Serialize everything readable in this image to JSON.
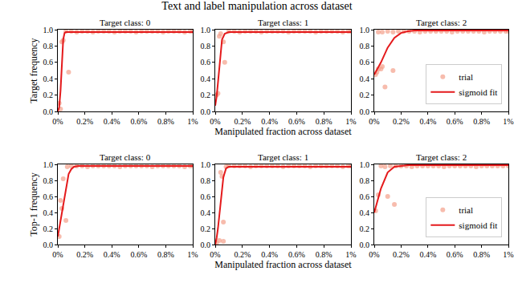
{
  "title": "Text and label manipulation across dataset",
  "chart_data": [
    {
      "type": "scatter",
      "title": "Target class: 0",
      "y_label": "Target frequency",
      "grid": false,
      "xlim": [
        0,
        1
      ],
      "xticks": [
        {
          "value": 0,
          "label": "0%"
        },
        {
          "value": 0.2,
          "label": "0.2%"
        },
        {
          "value": 0.4,
          "label": "0.4%"
        },
        {
          "value": 0.6,
          "label": "0.6%"
        },
        {
          "value": 0.8,
          "label": "0.8%"
        },
        {
          "value": 1,
          "label": "1%"
        }
      ],
      "ylim": [
        0,
        1
      ],
      "yticks": [
        {
          "value": 0,
          "label": "0.0"
        },
        0.2,
        0.4,
        0.6,
        0.8,
        {
          "value": 1,
          "label": "1.0"
        }
      ],
      "series": [
        {
          "name": "trial",
          "type": "scatter",
          "marker": "circle",
          "color": "#f4a08a",
          "x": [
            0.01,
            0.02,
            0.03,
            0.04,
            0.08,
            0.06,
            0.1,
            0.14,
            0.18,
            0.22,
            0.26,
            0.3,
            0.34,
            0.38,
            0.42,
            0.46,
            0.5,
            0.54,
            0.58,
            0.62,
            0.66,
            0.7,
            0.74,
            0.78,
            0.82,
            0.86,
            0.9,
            0.94,
            0.98,
            1.0
          ],
          "values": [
            0.1,
            0.03,
            0.85,
            0.87,
            0.48,
            0.98,
            0.98,
            0.97,
            0.98,
            0.98,
            0.97,
            0.98,
            0.98,
            0.98,
            0.97,
            0.98,
            0.98,
            0.98,
            0.97,
            0.98,
            0.98,
            0.98,
            0.98,
            0.97,
            0.98,
            0.98,
            0.98,
            0.97,
            0.98,
            0.98
          ]
        },
        {
          "name": "sigmoid fit",
          "type": "line",
          "line_style": "solid",
          "color": "#e41a1c",
          "x": [
            0,
            0.01,
            0.02,
            0.03,
            0.04,
            0.05,
            0.06,
            0.1,
            0.2,
            0.5,
            1.0
          ],
          "values": [
            0,
            0.05,
            0.25,
            0.6,
            0.88,
            0.96,
            0.97,
            0.97,
            0.97,
            0.97,
            0.97
          ]
        }
      ]
    },
    {
      "type": "scatter",
      "title": "Target class: 1",
      "x_label": "Manipulated fraction across dataset",
      "grid": false,
      "xlim": [
        0,
        1
      ],
      "xticks": [
        {
          "value": 0,
          "label": "0%"
        },
        {
          "value": 0.2,
          "label": "0.2%"
        },
        {
          "value": 0.4,
          "label": "0.4%"
        },
        {
          "value": 0.6,
          "label": "0.6%"
        },
        {
          "value": 0.8,
          "label": "0.8%"
        },
        {
          "value": 1,
          "label": "1%"
        }
      ],
      "ylim": [
        0,
        1
      ],
      "yticks": [
        {
          "value": 0,
          "label": "0.0"
        },
        0.2,
        0.4,
        0.6,
        0.8,
        {
          "value": 1,
          "label": "1.0"
        }
      ],
      "series": [
        {
          "name": "trial",
          "type": "scatter",
          "marker": "circle",
          "color": "#f4a08a",
          "x": [
            0.01,
            0.02,
            0.03,
            0.04,
            0.06,
            0.07,
            0.1,
            0.14,
            0.18,
            0.22,
            0.26,
            0.3,
            0.34,
            0.38,
            0.42,
            0.46,
            0.5,
            0.54,
            0.58,
            0.62,
            0.66,
            0.7,
            0.74,
            0.78,
            0.82,
            0.86,
            0.9,
            0.94,
            0.98,
            1.0
          ],
          "values": [
            0.2,
            0.22,
            0.92,
            0.95,
            0.85,
            0.6,
            0.98,
            0.98,
            0.97,
            0.98,
            0.98,
            0.98,
            0.97,
            0.98,
            0.98,
            0.98,
            0.98,
            0.97,
            0.98,
            0.98,
            0.98,
            0.98,
            0.97,
            0.98,
            0.98,
            0.98,
            0.98,
            0.97,
            0.98,
            0.98
          ]
        },
        {
          "name": "sigmoid fit",
          "type": "line",
          "line_style": "solid",
          "color": "#e41a1c",
          "x": [
            0,
            0.01,
            0.02,
            0.03,
            0.04,
            0.05,
            0.07,
            0.1,
            0.2,
            0.5,
            1.0
          ],
          "values": [
            0.07,
            0.18,
            0.35,
            0.55,
            0.75,
            0.88,
            0.95,
            0.97,
            0.97,
            0.97,
            0.97
          ]
        }
      ]
    },
    {
      "type": "scatter",
      "title": "Target class: 2",
      "legend": "lower right",
      "grid": false,
      "xlim": [
        0,
        1
      ],
      "xticks": [
        {
          "value": 0,
          "label": "0%"
        },
        {
          "value": 0.2,
          "label": "0.2%"
        },
        {
          "value": 0.4,
          "label": "0.4%"
        },
        {
          "value": 0.6,
          "label": "0.6%"
        },
        {
          "value": 0.8,
          "label": "0.8%"
        },
        {
          "value": 1,
          "label": "1%"
        }
      ],
      "ylim": [
        0,
        1
      ],
      "yticks": [
        {
          "value": 0,
          "label": "0.0"
        },
        0.2,
        0.4,
        0.6,
        0.8,
        {
          "value": 1,
          "label": "1.0"
        }
      ],
      "series": [
        {
          "name": "trial",
          "type": "scatter",
          "marker": "circle",
          "color": "#f4a08a",
          "x": [
            0.01,
            0.02,
            0.03,
            0.05,
            0.06,
            0.08,
            0.14,
            0.03,
            0.06,
            0.1,
            0.14,
            0.18,
            0.22,
            0.26,
            0.3,
            0.34,
            0.38,
            0.42,
            0.46,
            0.5,
            0.54,
            0.58,
            0.62,
            0.66,
            0.7,
            0.74,
            0.78,
            0.82,
            0.86,
            0.9,
            0.94,
            0.98,
            1.0
          ],
          "values": [
            0.45,
            0.48,
            0.52,
            0.52,
            0.55,
            0.3,
            0.5,
            0.97,
            0.97,
            0.98,
            0.97,
            0.98,
            0.98,
            0.98,
            0.98,
            0.97,
            0.98,
            0.98,
            0.98,
            0.98,
            0.98,
            0.97,
            0.98,
            0.98,
            0.98,
            0.98,
            0.98,
            0.97,
            0.98,
            0.98,
            0.98,
            0.98,
            0.98
          ]
        },
        {
          "name": "sigmoid fit",
          "type": "line",
          "line_style": "solid",
          "color": "#e41a1c",
          "x": [
            0,
            0.05,
            0.1,
            0.15,
            0.2,
            0.25,
            0.3,
            0.5,
            1.0
          ],
          "values": [
            0.45,
            0.6,
            0.78,
            0.9,
            0.96,
            0.98,
            0.99,
            0.99,
            0.99
          ]
        }
      ]
    },
    {
      "type": "scatter",
      "title": "Target class: 0",
      "y_label": "Top-1 frequency",
      "grid": false,
      "xlim": [
        0,
        1
      ],
      "xticks": [
        {
          "value": 0,
          "label": "0%"
        },
        {
          "value": 0.2,
          "label": "0.2%"
        },
        {
          "value": 0.4,
          "label": "0.4%"
        },
        {
          "value": 0.6,
          "label": "0.6%"
        },
        {
          "value": 0.8,
          "label": "0.8%"
        },
        {
          "value": 1,
          "label": "1%"
        }
      ],
      "ylim": [
        0,
        1
      ],
      "yticks": [
        {
          "value": 0,
          "label": "0.0"
        },
        0.2,
        0.4,
        0.6,
        0.8,
        {
          "value": 1,
          "label": "1.0"
        }
      ],
      "series": [
        {
          "name": "trial",
          "type": "scatter",
          "marker": "circle",
          "color": "#f4a08a",
          "x": [
            0.01,
            0.02,
            0.03,
            0.04,
            0.06,
            0.07,
            0.1,
            0.14,
            0.18,
            0.22,
            0.26,
            0.3,
            0.34,
            0.38,
            0.42,
            0.46,
            0.5,
            0.54,
            0.58,
            0.62,
            0.66,
            0.7,
            0.74,
            0.78,
            0.82,
            0.86,
            0.9,
            0.94,
            0.98,
            1.0
          ],
          "values": [
            0.1,
            0.55,
            0.45,
            0.82,
            0.3,
            0.97,
            0.98,
            0.98,
            0.98,
            0.97,
            0.98,
            0.98,
            0.98,
            0.98,
            0.98,
            0.97,
            0.98,
            0.98,
            0.98,
            0.98,
            0.98,
            0.97,
            0.98,
            0.98,
            0.98,
            0.98,
            0.98,
            0.97,
            0.98,
            0.98
          ]
        },
        {
          "name": "sigmoid fit",
          "type": "line",
          "line_style": "solid",
          "color": "#e41a1c",
          "x": [
            0,
            0.02,
            0.04,
            0.06,
            0.08,
            0.1,
            0.12,
            0.15,
            0.2,
            0.5,
            1.0
          ],
          "values": [
            0.1,
            0.3,
            0.5,
            0.72,
            0.88,
            0.94,
            0.97,
            0.98,
            0.98,
            0.98,
            0.98
          ]
        }
      ]
    },
    {
      "type": "scatter",
      "title": "Target class: 1",
      "x_label": "Manipulated fraction across dataset",
      "grid": false,
      "xlim": [
        0,
        1
      ],
      "xticks": [
        {
          "value": 0,
          "label": "0%"
        },
        {
          "value": 0.2,
          "label": "0.2%"
        },
        {
          "value": 0.4,
          "label": "0.4%"
        },
        {
          "value": 0.6,
          "label": "0.6%"
        },
        {
          "value": 0.8,
          "label": "0.8%"
        },
        {
          "value": 1,
          "label": "1%"
        }
      ],
      "ylim": [
        0,
        1
      ],
      "yticks": [
        {
          "value": 0,
          "label": "0.0"
        },
        0.2,
        0.4,
        0.6,
        0.8,
        {
          "value": 1,
          "label": "1.0"
        }
      ],
      "series": [
        {
          "name": "trial",
          "type": "scatter",
          "marker": "circle",
          "color": "#f4a08a",
          "x": [
            0.01,
            0.03,
            0.06,
            0.04,
            0.06,
            0.05,
            0.08,
            0.1,
            0.14,
            0.18,
            0.22,
            0.26,
            0.3,
            0.34,
            0.38,
            0.42,
            0.46,
            0.5,
            0.54,
            0.58,
            0.62,
            0.66,
            0.7,
            0.74,
            0.78,
            0.82,
            0.86,
            0.9,
            0.94,
            0.98,
            1.0
          ],
          "values": [
            0.02,
            0.05,
            0.04,
            0.9,
            0.28,
            0.85,
            0.97,
            0.98,
            0.98,
            0.98,
            0.98,
            0.97,
            0.98,
            0.98,
            0.98,
            0.98,
            0.98,
            0.97,
            0.98,
            0.98,
            0.98,
            0.98,
            0.97,
            0.98,
            0.98,
            0.98,
            0.98,
            0.98,
            0.97,
            0.98,
            0.98
          ]
        },
        {
          "name": "sigmoid fit",
          "type": "line",
          "line_style": "solid",
          "color": "#e41a1c",
          "x": [
            0,
            0.01,
            0.02,
            0.03,
            0.04,
            0.05,
            0.06,
            0.08,
            0.1,
            0.2,
            0.5,
            1.0
          ],
          "values": [
            0,
            0.08,
            0.2,
            0.35,
            0.52,
            0.7,
            0.84,
            0.95,
            0.97,
            0.97,
            0.97,
            0.97
          ]
        }
      ]
    },
    {
      "type": "scatter",
      "title": "Target class: 2",
      "legend": "lower right",
      "grid": false,
      "xlim": [
        0,
        1
      ],
      "xticks": [
        {
          "value": 0,
          "label": "0%"
        },
        {
          "value": 0.2,
          "label": "0.2%"
        },
        {
          "value": 0.4,
          "label": "0.4%"
        },
        {
          "value": 0.6,
          "label": "0.6%"
        },
        {
          "value": 0.8,
          "label": "0.8%"
        },
        {
          "value": 1,
          "label": "1%"
        }
      ],
      "ylim": [
        0,
        1
      ],
      "yticks": [
        {
          "value": 0,
          "label": "0.0"
        },
        0.2,
        0.4,
        0.6,
        0.8,
        {
          "value": 1,
          "label": "1.0"
        }
      ],
      "series": [
        {
          "name": "trial",
          "type": "scatter",
          "marker": "circle",
          "color": "#f4a08a",
          "x": [
            0.01,
            0.03,
            0.1,
            0.15,
            0.05,
            0.08,
            0.12,
            0.16,
            0.2,
            0.24,
            0.28,
            0.32,
            0.36,
            0.4,
            0.44,
            0.48,
            0.52,
            0.56,
            0.6,
            0.64,
            0.68,
            0.72,
            0.76,
            0.8,
            0.84,
            0.88,
            0.92,
            0.96,
            1.0
          ],
          "values": [
            0.42,
            0.62,
            0.6,
            0.5,
            0.98,
            0.97,
            0.98,
            0.98,
            0.98,
            0.98,
            0.97,
            0.98,
            0.98,
            0.98,
            0.98,
            0.98,
            0.97,
            0.98,
            0.98,
            0.98,
            0.98,
            0.98,
            0.97,
            0.98,
            0.98,
            0.98,
            0.98,
            0.98,
            0.98
          ]
        },
        {
          "name": "sigmoid fit",
          "type": "line",
          "line_style": "solid",
          "color": "#e41a1c",
          "x": [
            0,
            0.05,
            0.1,
            0.15,
            0.2,
            0.25,
            0.3,
            0.5,
            1.0
          ],
          "values": [
            0.4,
            0.7,
            0.9,
            0.97,
            0.98,
            0.99,
            0.99,
            0.99,
            0.99
          ]
        }
      ]
    }
  ]
}
